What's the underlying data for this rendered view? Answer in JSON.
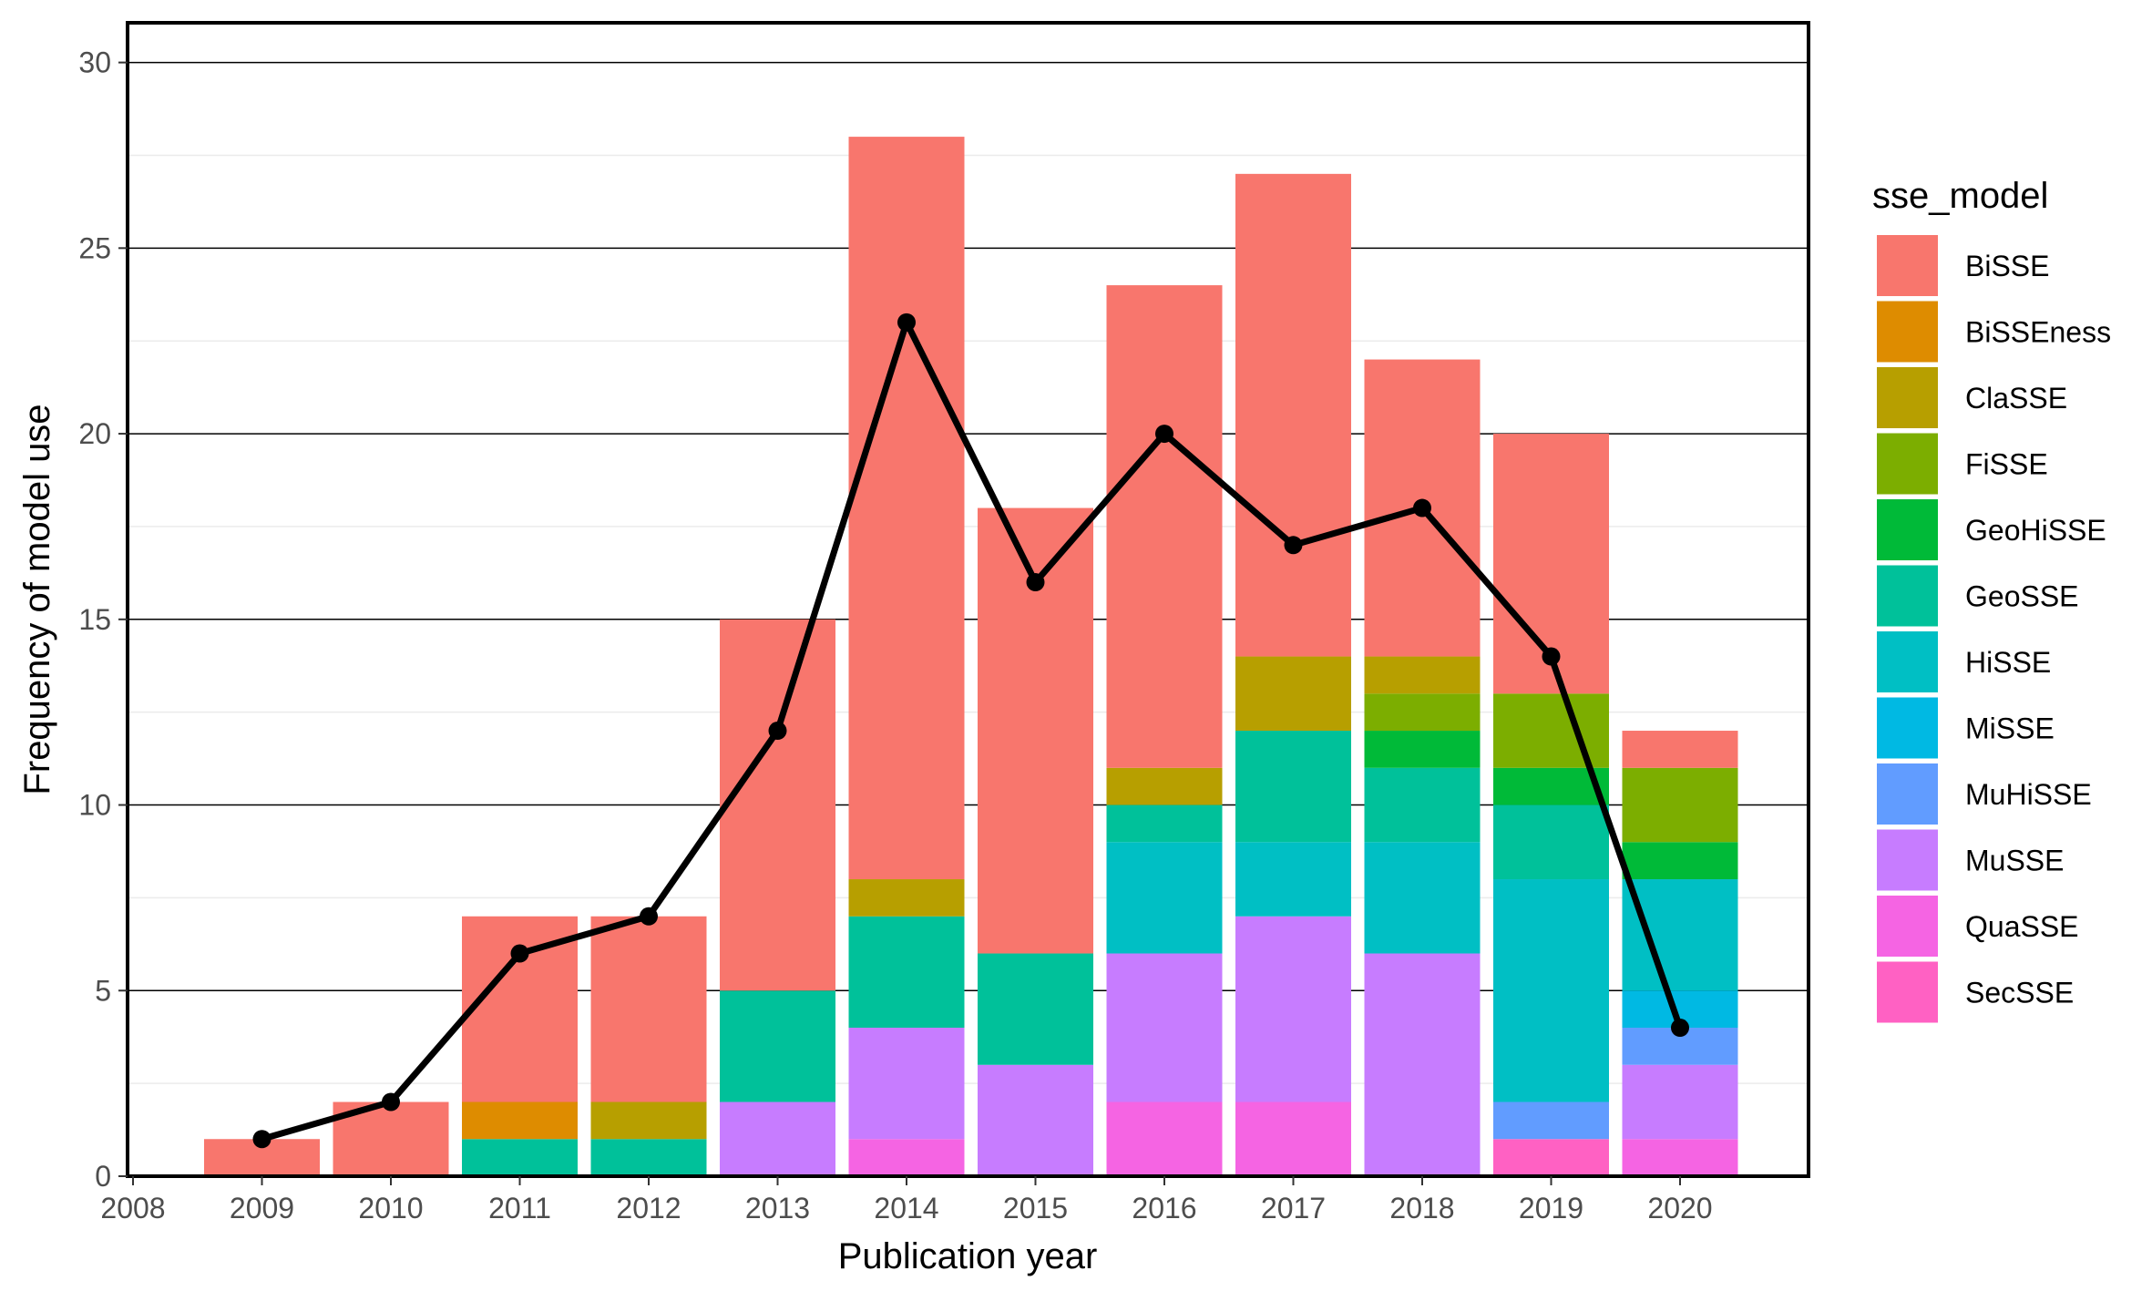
{
  "chart_data": {
    "type": "bar",
    "stacked": true,
    "xlabel": "Publication year",
    "ylabel": "Frequency of model use",
    "ylim": [
      0,
      30
    ],
    "xlim": [
      2008,
      2021
    ],
    "x_ticks": [
      "2008",
      "2009",
      "2010",
      "2011",
      "2012",
      "2013",
      "2014",
      "2015",
      "2016",
      "2017",
      "2018",
      "2019",
      "2020"
    ],
    "y_ticks": [
      "0",
      "5",
      "10",
      "15",
      "20",
      "25",
      "30"
    ],
    "grid": true,
    "legend": {
      "title": "sse_model",
      "position": "right"
    },
    "categories": [
      "2009",
      "2010",
      "2011",
      "2012",
      "2013",
      "2014",
      "2015",
      "2016",
      "2017",
      "2018",
      "2019",
      "2020"
    ],
    "series": [
      {
        "name": "SecSSE",
        "color": "#FF61C3",
        "values": [
          0,
          0,
          0,
          0,
          0,
          0,
          0,
          0,
          0,
          0,
          1,
          0
        ]
      },
      {
        "name": "QuaSSE",
        "color": "#F564E3",
        "values": [
          0,
          0,
          0,
          0,
          0,
          1,
          0,
          2,
          2,
          0,
          0,
          1
        ]
      },
      {
        "name": "MuSSE",
        "color": "#C77CFF",
        "values": [
          0,
          0,
          0,
          0,
          2,
          3,
          3,
          4,
          5,
          6,
          0,
          2
        ]
      },
      {
        "name": "MuHiSSE",
        "color": "#619CFF",
        "values": [
          0,
          0,
          0,
          0,
          0,
          0,
          0,
          0,
          0,
          0,
          1,
          1
        ]
      },
      {
        "name": "MiSSE",
        "color": "#00B9E3",
        "values": [
          0,
          0,
          0,
          0,
          0,
          0,
          0,
          0,
          0,
          0,
          0,
          1
        ]
      },
      {
        "name": "HiSSE",
        "color": "#00BFC4",
        "values": [
          0,
          0,
          0,
          0,
          0,
          0,
          0,
          3,
          2,
          3,
          6,
          3
        ]
      },
      {
        "name": "GeoSSE",
        "color": "#00C19A",
        "values": [
          0,
          0,
          1,
          1,
          3,
          3,
          3,
          1,
          3,
          2,
          2,
          0
        ]
      },
      {
        "name": "GeoHiSSE",
        "color": "#00BA38",
        "values": [
          0,
          0,
          0,
          0,
          0,
          0,
          0,
          0,
          0,
          1,
          1,
          1
        ]
      },
      {
        "name": "FiSSE",
        "color": "#7CAE00",
        "values": [
          0,
          0,
          0,
          0,
          0,
          0,
          0,
          0,
          0,
          1,
          2,
          2
        ]
      },
      {
        "name": "ClaSSE",
        "color": "#B79F00",
        "values": [
          0,
          0,
          0,
          1,
          0,
          1,
          0,
          1,
          2,
          1,
          0,
          0
        ]
      },
      {
        "name": "BiSSEness",
        "color": "#DE8C00",
        "values": [
          0,
          0,
          1,
          0,
          0,
          0,
          0,
          0,
          0,
          0,
          0,
          0
        ]
      },
      {
        "name": "BiSSE",
        "color": "#F8766D",
        "values": [
          1,
          2,
          5,
          5,
          10,
          20,
          12,
          13,
          13,
          8,
          7,
          1
        ]
      }
    ],
    "legend_order": [
      "BiSSE",
      "BiSSEness",
      "ClaSSE",
      "FiSSE",
      "GeoHiSSE",
      "GeoSSE",
      "HiSSE",
      "MiSSE",
      "MuHiSSE",
      "MuSSE",
      "QuaSSE",
      "SecSSE"
    ],
    "line": {
      "color": "#000000",
      "x": [
        "2009",
        "2010",
        "2011",
        "2012",
        "2013",
        "2014",
        "2015",
        "2016",
        "2017",
        "2018",
        "2019",
        "2020"
      ],
      "values": [
        1,
        2,
        6,
        7,
        12,
        23,
        16,
        20,
        17,
        18,
        14,
        4
      ]
    }
  }
}
